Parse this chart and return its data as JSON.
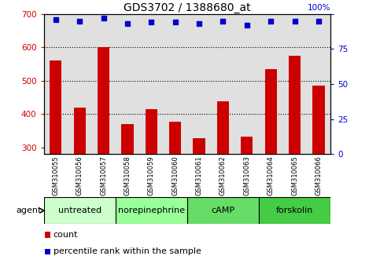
{
  "title": "GDS3702 / 1388680_at",
  "samples": [
    "GSM310055",
    "GSM310056",
    "GSM310057",
    "GSM310058",
    "GSM310059",
    "GSM310060",
    "GSM310061",
    "GSM310062",
    "GSM310063",
    "GSM310064",
    "GSM310065",
    "GSM310066"
  ],
  "counts": [
    560,
    420,
    600,
    370,
    415,
    378,
    328,
    438,
    332,
    535,
    575,
    485
  ],
  "percentiles": [
    96,
    95,
    97,
    93,
    94,
    94,
    93,
    95,
    92,
    95,
    95,
    95
  ],
  "ylim_left": [
    280,
    700
  ],
  "ylim_right": [
    0,
    100
  ],
  "yticks_left": [
    300,
    400,
    500,
    600,
    700
  ],
  "yticks_right": [
    0,
    25,
    50,
    75,
    100
  ],
  "hlines": [
    400,
    500,
    600
  ],
  "bar_color": "#cc0000",
  "dot_color": "#0000cc",
  "agents": [
    {
      "label": "untreated",
      "start": 0,
      "end": 3,
      "color": "#ccffcc"
    },
    {
      "label": "norepinephrine",
      "start": 3,
      "end": 6,
      "color": "#99ff99"
    },
    {
      "label": "cAMP",
      "start": 6,
      "end": 9,
      "color": "#66dd66"
    },
    {
      "label": "forskolin",
      "start": 9,
      "end": 12,
      "color": "#44cc44"
    }
  ],
  "agent_label": "agent",
  "legend_count_label": "count",
  "legend_percentile_label": "percentile rank within the sample",
  "bar_width": 0.5,
  "background_color": "#ffffff",
  "plot_bg_color": "#e0e0e0",
  "sample_bg_color": "#c8c8c8",
  "title_fontsize": 10,
  "tick_fontsize": 7.5,
  "sample_fontsize": 6,
  "agent_fontsize": 8,
  "legend_fontsize": 8
}
